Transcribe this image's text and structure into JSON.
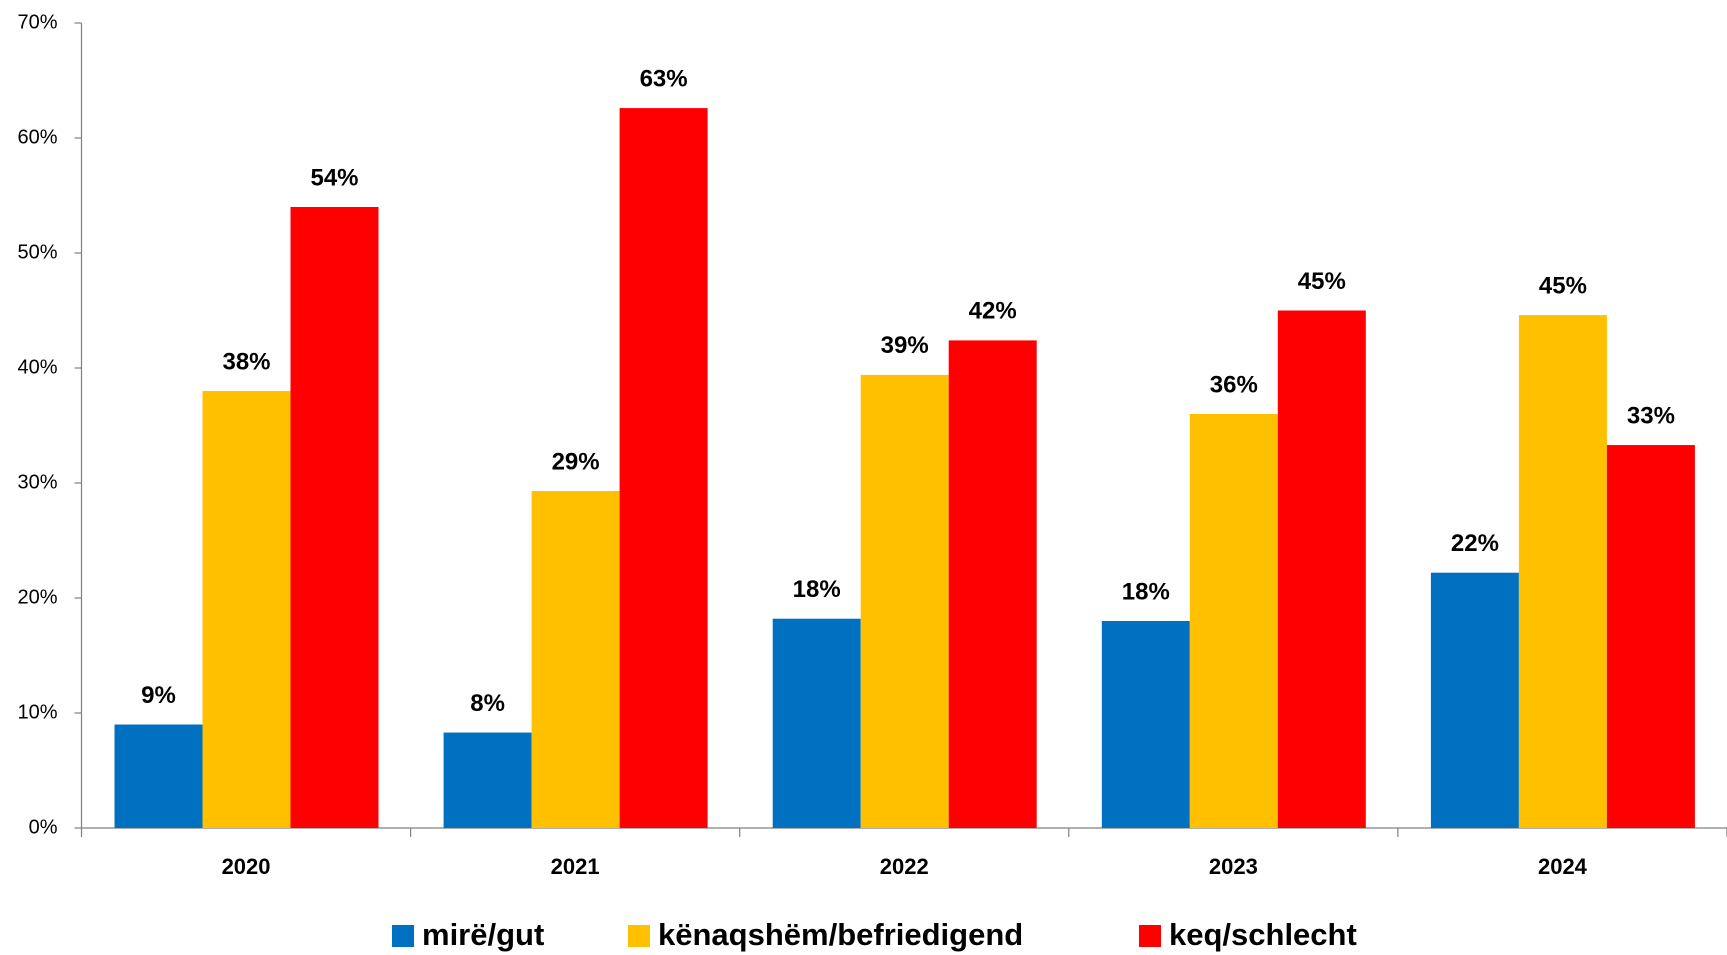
{
  "chart_data": {
    "type": "bar",
    "categories": [
      "2020",
      "2021",
      "2022",
      "2023",
      "2024"
    ],
    "series": [
      {
        "name": "mirë/gut",
        "color": "#0070c0",
        "values": [
          9.0,
          8.3,
          18.2,
          18.0,
          22.2
        ],
        "value_labels": [
          "9%",
          "8%",
          "18%",
          "18%",
          "22%"
        ]
      },
      {
        "name": "kënaqshëm/befriedigend",
        "color": "#ffc000",
        "values": [
          38.0,
          29.3,
          39.4,
          36.0,
          44.6
        ],
        "value_labels": [
          "38%",
          "29%",
          "39%",
          "36%",
          "45%"
        ]
      },
      {
        "name": "keq/schlecht",
        "color": "#ff0000",
        "values": [
          54.0,
          62.6,
          42.4,
          45.0,
          33.3
        ],
        "value_labels": [
          "54%",
          "63%",
          "42%",
          "45%",
          "33%"
        ]
      }
    ],
    "ylim": [
      0,
      70
    ],
    "yticks": [
      {
        "value": 0,
        "label": "0%"
      },
      {
        "value": 10,
        "label": "10%"
      },
      {
        "value": 20,
        "label": "20%"
      },
      {
        "value": 30,
        "label": "30%"
      },
      {
        "value": 40,
        "label": "40%"
      },
      {
        "value": 50,
        "label": "50%"
      },
      {
        "value": 60,
        "label": "60%"
      },
      {
        "value": 70,
        "label": "70%"
      }
    ],
    "grid": false,
    "legend": "bottom"
  }
}
